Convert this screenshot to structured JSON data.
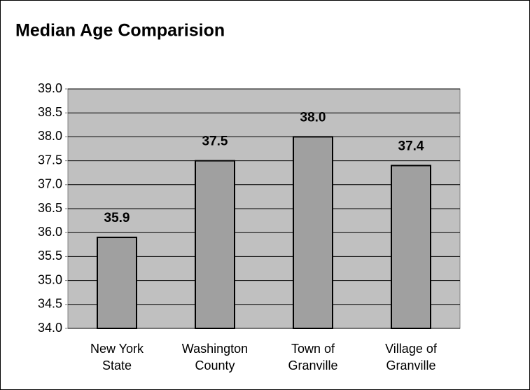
{
  "chart_data": {
    "type": "bar",
    "title": "Median Age Comparision",
    "categories": [
      "New York State",
      "Washington County",
      "Town of Granville",
      "Village of Granville"
    ],
    "values": [
      35.9,
      37.5,
      38.0,
      37.4
    ],
    "value_labels": [
      "35.9",
      "37.5",
      "38.0",
      "37.4"
    ],
    "color": "#a0a0a0",
    "ylim": [
      34,
      39
    ],
    "yticks": [
      {
        "value": 34,
        "label": "34.0"
      },
      34.5,
      {
        "value": 35,
        "label": "35.0"
      },
      35.5,
      {
        "value": 36,
        "label": "36.0"
      },
      36.5,
      {
        "value": 37,
        "label": "37.0"
      },
      37.5,
      {
        "value": 38,
        "label": "38.0"
      },
      38.5,
      {
        "value": 39,
        "label": "39.0"
      }
    ],
    "grid": true
  }
}
